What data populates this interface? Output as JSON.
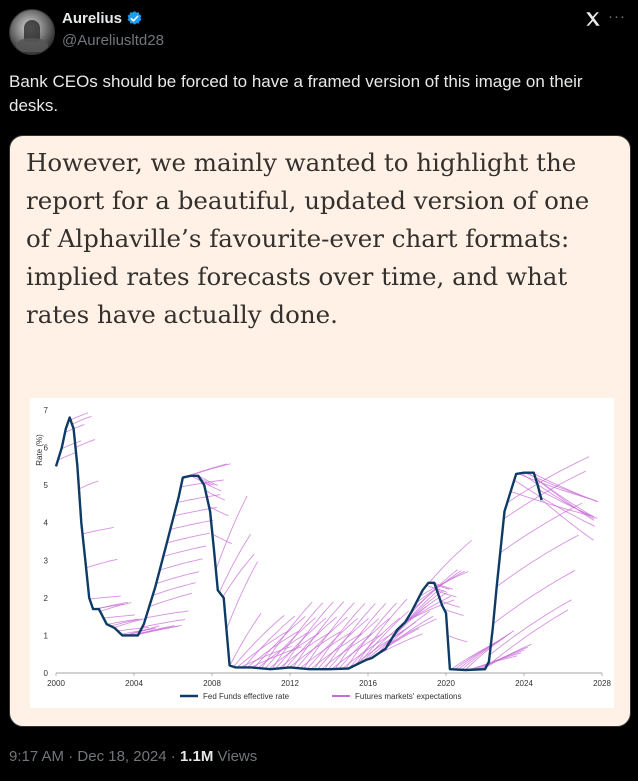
{
  "author": {
    "name": "Aurelius",
    "handle": "@Aureliusltd28",
    "verified_color": "#1d9bf0"
  },
  "tweet": {
    "text": "Bank CEOs should be forced to have a framed version of this image on their desks.",
    "time": "9:17 AM",
    "date": "Dec 18, 2024",
    "views_count": "1.1M",
    "views_label": "Views"
  },
  "icons": {
    "platform": "x-logo-icon",
    "more": "more-dots-icon",
    "verified": "verified-badge-icon"
  },
  "media": {
    "quote": "However, we mainly wanted to highlight the report for a beautiful, updated version of one of Alphaville’s favourite-ever chart formats: implied rates forecasts over time, and what rates have actually done.",
    "background": "#fff1e5"
  },
  "chart_data": {
    "type": "line",
    "ylabel": "Rate (%)",
    "xlim": [
      2000,
      2028
    ],
    "ylim": [
      0,
      7
    ],
    "xticks": [
      "2000",
      "2004",
      "2008",
      "2012",
      "2016",
      "2020",
      "2024",
      "2028"
    ],
    "yticks": [
      "0",
      "1",
      "2",
      "3",
      "4",
      "5",
      "6",
      "7"
    ],
    "legend_position": "bottom",
    "colors": {
      "fed_funds": "#0d3b66",
      "futures": "#c86dd7"
    },
    "series": [
      {
        "name": "Fed Funds effective rate",
        "x": [
          2000.0,
          2000.3,
          2000.5,
          2000.7,
          2000.9,
          2001.1,
          2001.3,
          2001.5,
          2001.7,
          2001.9,
          2002.2,
          2002.6,
          2003.0,
          2003.4,
          2003.8,
          2004.2,
          2004.5,
          2004.8,
          2005.1,
          2005.4,
          2005.7,
          2006.0,
          2006.3,
          2006.5,
          2006.9,
          2007.3,
          2007.6,
          2007.9,
          2008.1,
          2008.3,
          2008.6,
          2008.9,
          2009.2,
          2010.0,
          2011.0,
          2012.0,
          2013.0,
          2014.0,
          2015.0,
          2015.9,
          2016.2,
          2016.9,
          2017.2,
          2017.5,
          2017.9,
          2018.2,
          2018.5,
          2018.8,
          2019.1,
          2019.4,
          2019.6,
          2019.8,
          2020.0,
          2020.2,
          2021.0,
          2022.0,
          2022.2,
          2022.4,
          2022.6,
          2022.8,
          2023.0,
          2023.3,
          2023.6,
          2024.0,
          2024.5,
          2024.7,
          2024.9
        ],
        "y": [
          5.5,
          6.0,
          6.5,
          6.8,
          6.5,
          5.5,
          4.0,
          3.0,
          2.0,
          1.7,
          1.7,
          1.3,
          1.2,
          1.0,
          1.0,
          1.0,
          1.3,
          1.8,
          2.3,
          2.9,
          3.5,
          4.1,
          4.7,
          5.2,
          5.25,
          5.25,
          5.0,
          4.3,
          3.3,
          2.2,
          2.0,
          0.2,
          0.15,
          0.15,
          0.1,
          0.15,
          0.1,
          0.1,
          0.12,
          0.35,
          0.4,
          0.65,
          0.9,
          1.15,
          1.35,
          1.6,
          1.9,
          2.2,
          2.4,
          2.4,
          2.1,
          1.8,
          1.6,
          0.1,
          0.08,
          0.1,
          0.3,
          1.2,
          2.3,
          3.3,
          4.3,
          4.8,
          5.3,
          5.33,
          5.33,
          5.0,
          4.6
        ]
      },
      {
        "name": "Futures markets' expectations"
      }
    ]
  }
}
